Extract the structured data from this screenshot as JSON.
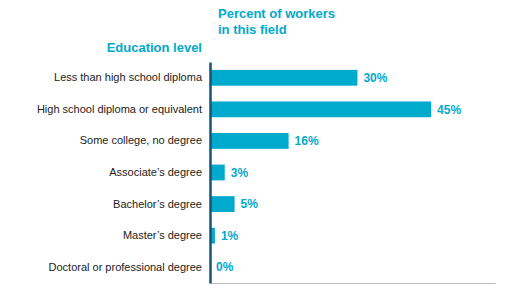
{
  "chart_data": {
    "type": "bar",
    "orientation": "horizontal",
    "xlabel": "Percent of workers\nin this field",
    "ylabel": "Education level",
    "categories": [
      "Less than high school diploma",
      "High school diploma or equivalent",
      "Some college, no degree",
      "Associate’s degree",
      "Bachelor’s degree",
      "Master’s degree",
      "Doctoral or professional degree"
    ],
    "values": [
      30,
      45,
      16,
      3,
      5,
      1,
      0
    ],
    "value_labels": [
      "30%",
      "45%",
      "16%",
      "3%",
      "5%",
      "1%",
      "0%"
    ],
    "data_labels": true,
    "color": "#00aacc",
    "xlim": [
      0,
      58
    ],
    "tick_labels": "y",
    "grid": false
  }
}
